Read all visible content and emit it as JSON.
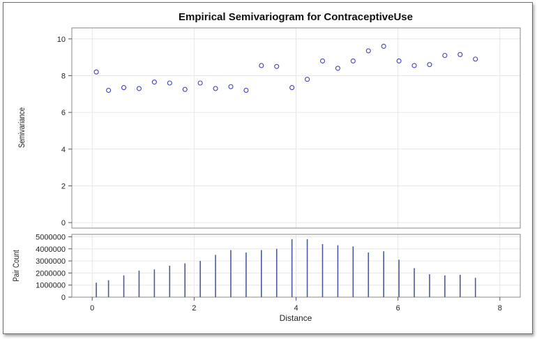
{
  "chart_data": {
    "type": "scatter",
    "title": "Empirical Semivariogram for ContraceptiveUse",
    "xlabel": "Distance",
    "grid": true,
    "xlim": [
      -0.4,
      8.4
    ],
    "x_ticks": [
      "0",
      "2",
      "4",
      "6",
      "8"
    ],
    "x_tick_values": [
      0,
      2,
      4,
      6,
      8
    ],
    "panels": [
      {
        "type": "scatter",
        "ylabel": "Semivariance",
        "ylim": [
          -0.3,
          10.6
        ],
        "y_ticks": [
          "0",
          "2",
          "4",
          "6",
          "8",
          "10"
        ],
        "y_tick_values": [
          0,
          2,
          4,
          6,
          8,
          10
        ],
        "marker_color": "#4040c0",
        "x": [
          0.08,
          0.32,
          0.62,
          0.92,
          1.22,
          1.52,
          1.82,
          2.12,
          2.42,
          2.72,
          3.02,
          3.32,
          3.62,
          3.92,
          4.22,
          4.52,
          4.82,
          5.12,
          5.42,
          5.72,
          6.02,
          6.32,
          6.62,
          6.92,
          7.22,
          7.52
        ],
        "y": [
          8.2,
          7.2,
          7.35,
          7.3,
          7.65,
          7.6,
          7.25,
          7.6,
          7.3,
          7.4,
          7.2,
          8.55,
          8.5,
          7.35,
          7.8,
          8.8,
          8.4,
          8.8,
          9.35,
          9.6,
          8.8,
          8.55,
          8.6,
          9.1,
          9.15,
          8.9
        ]
      },
      {
        "type": "bar",
        "ylabel": "Pair Count",
        "ylim": [
          0,
          5200000
        ],
        "y_ticks": [
          "0",
          "1000000",
          "2000000",
          "3000000",
          "4000000",
          "5000000"
        ],
        "y_tick_values": [
          0,
          1000000,
          2000000,
          3000000,
          4000000,
          5000000
        ],
        "bar_color": "#4a5a9a",
        "x": [
          0.08,
          0.32,
          0.62,
          0.92,
          1.22,
          1.52,
          1.82,
          2.12,
          2.42,
          2.72,
          3.02,
          3.32,
          3.62,
          3.92,
          4.22,
          4.52,
          4.82,
          5.12,
          5.42,
          5.72,
          6.02,
          6.32,
          6.62,
          6.92,
          7.22,
          7.52
        ],
        "values": [
          1200000,
          1400000,
          1800000,
          2200000,
          2300000,
          2600000,
          2800000,
          3000000,
          3500000,
          3900000,
          3700000,
          3900000,
          4000000,
          4800000,
          4800000,
          4400000,
          4300000,
          4200000,
          3700000,
          3800000,
          3100000,
          2400000,
          1900000,
          1800000,
          1850000,
          1600000
        ]
      }
    ]
  }
}
